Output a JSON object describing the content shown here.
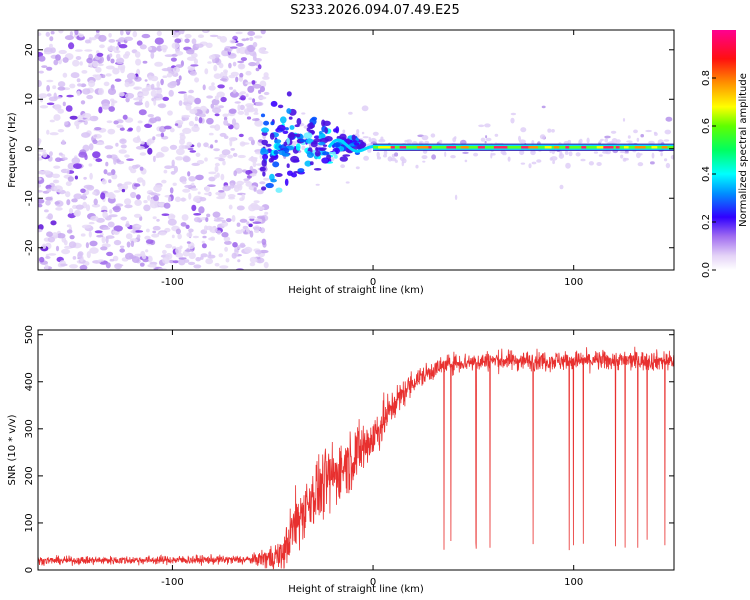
{
  "title": "S233.2026.094.07.49.E25",
  "chart_data": [
    {
      "type": "heatmap",
      "panel": "spectrogram",
      "xlabel": "Height of straight line (km)",
      "ylabel": "Frequency (Hz)",
      "xlim": [
        -167,
        150
      ],
      "ylim": [
        -24.5,
        24
      ],
      "xticks": [
        -100,
        0,
        100
      ],
      "xtick_labels": [
        "-100",
        "0",
        "100"
      ],
      "yticks": [
        -20,
        -10,
        0,
        10,
        20
      ],
      "ytick_labels": [
        "-20",
        "-10",
        "0",
        "10",
        "20"
      ],
      "noise_region_x": [
        -167,
        -55
      ],
      "transition_region_x": [
        -55,
        -5
      ],
      "signal_start_x": 0,
      "signal_frequency_hz": 0.3,
      "colorbar": {
        "label": "Normalized spectral amplitude",
        "range": [
          0,
          1
        ],
        "ticks": [
          0.0,
          0.2,
          0.4,
          0.6,
          0.8
        ],
        "tick_labels": [
          "0.0",
          "0.2",
          "0.4",
          "0.6",
          "0.8"
        ]
      }
    },
    {
      "type": "line",
      "panel": "snr",
      "xlabel": "Height of straight line (km)",
      "ylabel": "SNR (10 * v/v)",
      "xlim": [
        -167,
        150
      ],
      "ylim": [
        0,
        510
      ],
      "xticks": [
        -100,
        0,
        100
      ],
      "xtick_labels": [
        "-100",
        "0",
        "100"
      ],
      "yticks": [
        0,
        100,
        200,
        300,
        400,
        500
      ],
      "ytick_labels": [
        "0",
        "100",
        "200",
        "300",
        "400",
        "500"
      ],
      "series": [
        {
          "name": "SNR",
          "color": "#e8302f",
          "profile_x": [
            -167,
            -60,
            -45,
            -40,
            -30,
            -20,
            -10,
            0,
            10,
            20,
            30,
            40,
            60,
            100,
            150
          ],
          "profile_y": [
            20,
            22,
            30,
            90,
            160,
            200,
            240,
            280,
            350,
            400,
            425,
            440,
            445,
            445,
            445
          ],
          "noise_std": [
            6,
            7,
            30,
            45,
            50,
            50,
            45,
            40,
            25,
            18,
            15,
            15,
            15,
            15,
            15
          ],
          "dropouts_x_start": 35,
          "dropout_floor": 40
        }
      ]
    }
  ]
}
